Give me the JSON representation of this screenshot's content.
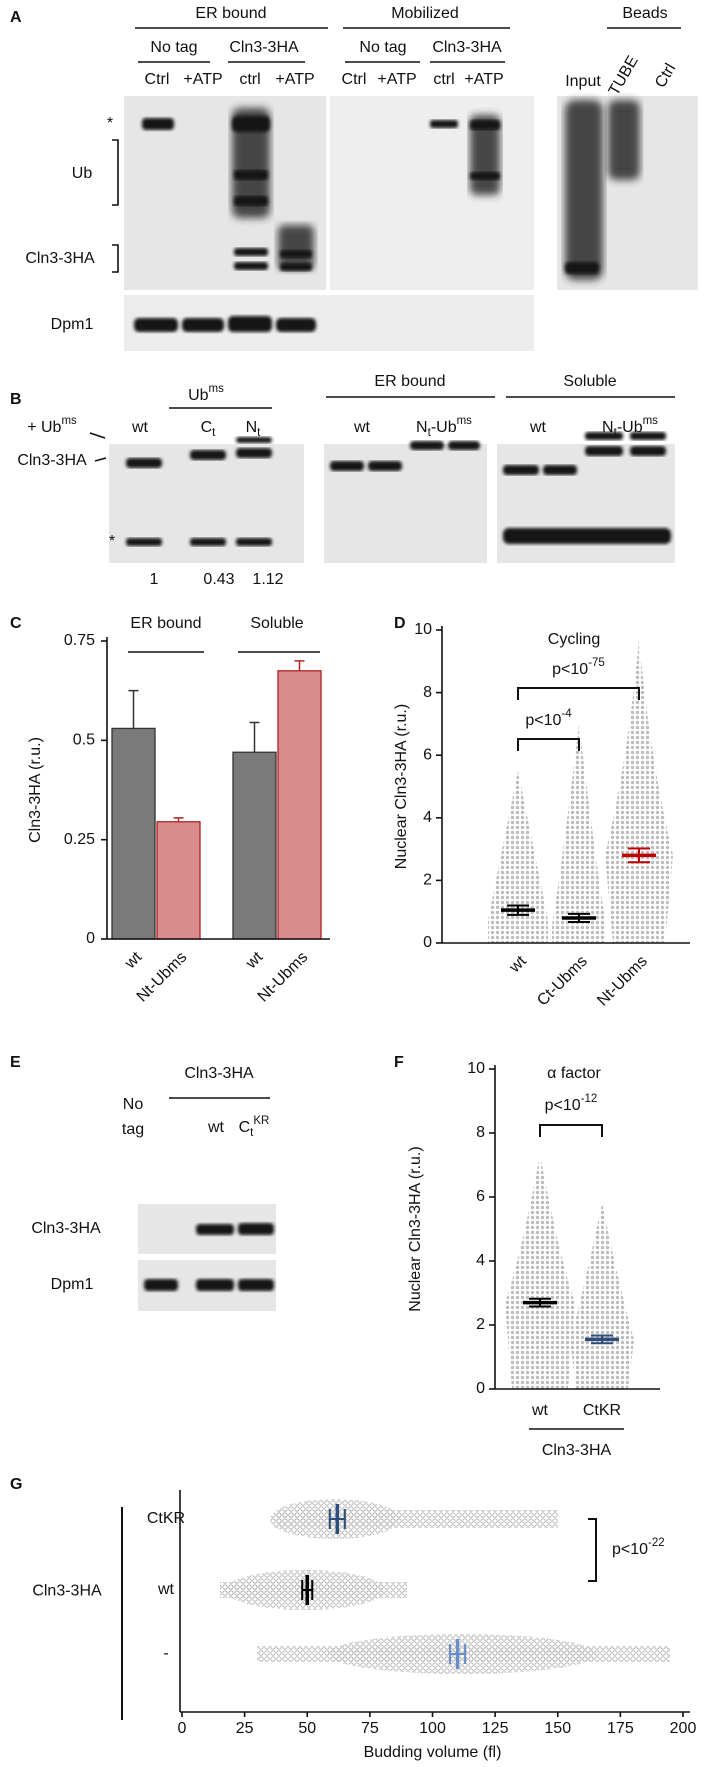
{
  "panel_a": {
    "letter": "A",
    "groups": [
      "ER bound",
      "Mobilized",
      "Beads"
    ],
    "subgroups": [
      "No tag",
      "Cln3-3HA",
      "No tag",
      "Cln3-3HA"
    ],
    "lanes": [
      "Ctrl",
      "+ATP",
      "ctrl",
      "+ATP",
      "Ctrl",
      "+ATP",
      "ctrl",
      "+ATP"
    ],
    "bead_lanes": [
      "Input",
      "TUBE",
      "Ctrl"
    ],
    "row_labels": [
      "*",
      "Ub",
      "Cln3-3HA",
      "Dpm1"
    ]
  },
  "panel_b": {
    "letter": "B",
    "header": [
      {
        "t": "Ub"
      },
      {
        "t": "ms",
        "pos": "sup"
      }
    ],
    "lanes": [
      [
        {
          "t": "wt"
        }
      ],
      [
        {
          "t": "C"
        },
        {
          "t": "t",
          "pos": "sub"
        }
      ],
      [
        {
          "t": "N"
        },
        {
          "t": "t",
          "pos": "sub"
        }
      ]
    ],
    "quantification": [
      1,
      0.43,
      1.12
    ],
    "groups": [
      "ER bound",
      "Soluble"
    ],
    "group_lanes": [
      [
        {
          "t": "wt"
        }
      ],
      [
        {
          "t": "N"
        },
        {
          "t": "t",
          "pos": "sub"
        },
        {
          "t": "-Ub"
        },
        {
          "t": "ms",
          "pos": "sup"
        }
      ]
    ],
    "row_labels": [
      [
        {
          "t": "+ Ub"
        },
        {
          "t": "ms",
          "pos": "sup"
        }
      ],
      [
        {
          "t": "Cln3-3HA"
        }
      ],
      [
        {
          "t": "*"
        }
      ]
    ]
  },
  "panel_e": {
    "letter": "E",
    "no_tag": [
      "No",
      "tag"
    ],
    "header": "Cln3-3HA",
    "lanes": [
      [
        {
          "t": "wt"
        }
      ],
      [
        {
          "t": "C"
        },
        {
          "t": "t",
          "pos": "sub"
        },
        {
          "t": "KR",
          "pos": "sup"
        }
      ]
    ],
    "row_labels": [
      "Cln3-3HA",
      "Dpm1"
    ]
  },
  "chart_data": [
    {
      "type": "bar",
      "letter": "C",
      "ylabel": "Cln3-3HA (r.u.)",
      "categories": [
        "ER bound",
        "Soluble"
      ],
      "series": [
        {
          "name": "wt",
          "color": "#7a7a7a",
          "edge": "#333333",
          "values": [
            0.53,
            0.47
          ],
          "errors": [
            0.095,
            0.075
          ]
        },
        {
          "name": "Nt-Ubms",
          "color": "#d98c8c",
          "edge": "#b22222",
          "values": [
            0.295,
            0.675
          ],
          "errors": [
            0.01,
            0.025
          ]
        }
      ],
      "ylim": [
        0,
        0.75
      ],
      "yticks": [
        0,
        0.25,
        0.5,
        0.75
      ]
    },
    {
      "type": "dot",
      "letter": "D",
      "title": "Cycling",
      "ylabel": "Nuclear Cln3-3HA (r.u.)",
      "categories": [
        "wt",
        "Ct-Ubms",
        "Nt-Ubms"
      ],
      "values": [
        1.05,
        0.8,
        2.8
      ],
      "errors": [
        0.15,
        0.13,
        0.22
      ],
      "colors": [
        "#000000",
        "#000000",
        "#c00000"
      ],
      "ylim": [
        0,
        10
      ],
      "yticks": [
        0,
        2,
        4,
        6,
        8,
        10
      ],
      "annotations": [
        {
          "text": "p<10",
          "exponent": "-4"
        },
        {
          "text": "p<10",
          "exponent": "-75"
        }
      ]
    },
    {
      "type": "dot",
      "letter": "F",
      "title": "α factor",
      "ylabel": "Nuclear Cln3-3HA (r.u.)",
      "categories": [
        "wt",
        "CtKR"
      ],
      "group_label": "Cln3-3HA",
      "values": [
        2.7,
        1.55
      ],
      "errors": [
        0.12,
        0.12
      ],
      "colors": [
        "#000000",
        "#2e4d78"
      ],
      "ylim": [
        0,
        10
      ],
      "yticks": [
        0,
        2,
        4,
        6,
        8,
        10
      ],
      "annotations": [
        {
          "text": "p<10",
          "exponent": "-12"
        }
      ]
    },
    {
      "type": "hdot",
      "letter": "G",
      "xlabel": "Budding volume (fl)",
      "group_label": "Cln3-3HA",
      "categories": [
        "CtKR",
        "wt",
        "-"
      ],
      "values": [
        62,
        50,
        110
      ],
      "errors": [
        3,
        2,
        3
      ],
      "colors": [
        "#2e4d78",
        "#000000",
        "#6a8fc8"
      ],
      "xlim": [
        0,
        200
      ],
      "xticks": [
        0,
        25,
        50,
        75,
        100,
        125,
        150,
        175,
        200
      ],
      "annotations": [
        {
          "text": "p<10",
          "exponent": "-22"
        }
      ]
    }
  ]
}
